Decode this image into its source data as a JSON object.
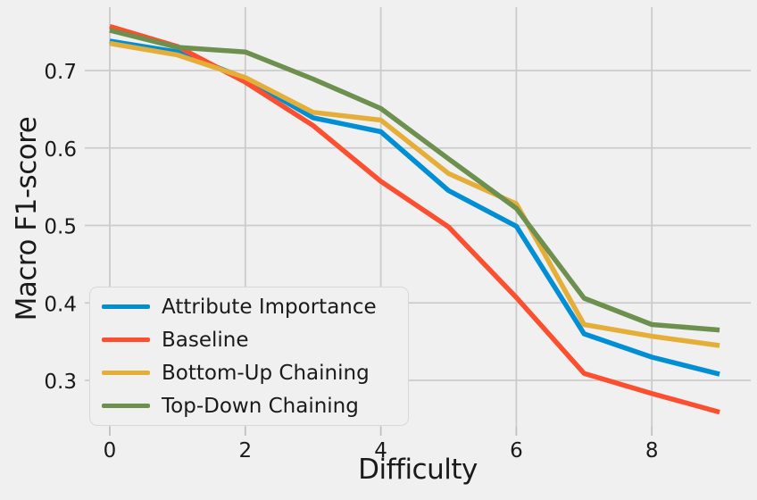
{
  "chart_data": {
    "type": "line",
    "xlabel": "Difficulty",
    "ylabel": "Macro F1-score",
    "x": [
      0,
      1,
      2,
      3,
      4,
      5,
      6,
      7,
      8,
      9
    ],
    "series": [
      {
        "name": "Attribute Importance",
        "color": "#008fd5",
        "values": [
          0.738,
          0.724,
          0.69,
          0.639,
          0.621,
          0.545,
          0.499,
          0.36,
          0.33,
          0.308
        ]
      },
      {
        "name": "Baseline",
        "color": "#fc4f30",
        "values": [
          0.757,
          0.731,
          0.685,
          0.629,
          0.557,
          0.498,
          0.407,
          0.309,
          0.283,
          0.259
        ]
      },
      {
        "name": "Bottom-Up Chaining",
        "color": "#e5ae38",
        "values": [
          0.735,
          0.72,
          0.691,
          0.646,
          0.636,
          0.567,
          0.528,
          0.372,
          0.357,
          0.345
        ]
      },
      {
        "name": "Top-Down Chaining",
        "color": "#6d904f",
        "values": [
          0.752,
          0.73,
          0.724,
          0.689,
          0.651,
          0.586,
          0.522,
          0.406,
          0.372,
          0.365
        ]
      }
    ],
    "xticks": [
      0,
      2,
      4,
      6,
      8
    ],
    "yticks": [
      0.3,
      0.4,
      0.5,
      0.6,
      0.7
    ],
    "xlim": [
      -0.25,
      9.45
    ],
    "ylim": [
      0.24,
      0.78
    ],
    "grid": true,
    "legend_position": "lower left",
    "background_color": "#f0f0f0",
    "grid_color": "#cbcbcb",
    "text_color": "#1a1a1a"
  }
}
